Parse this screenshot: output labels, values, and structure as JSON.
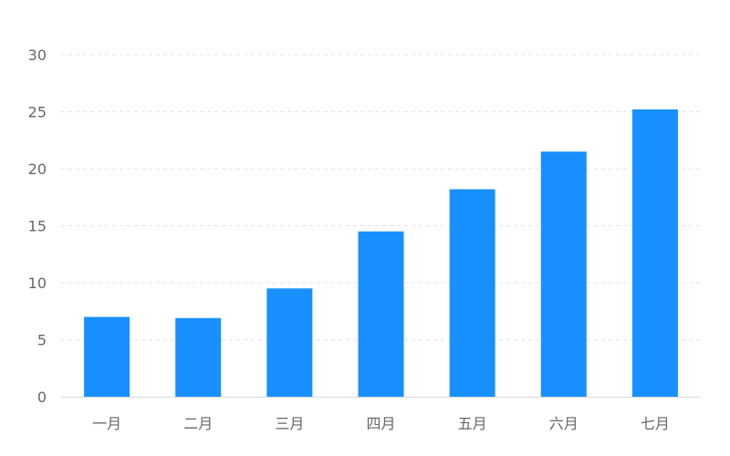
{
  "chart_data": {
    "type": "bar",
    "title": "",
    "xlabel": "",
    "ylabel": "",
    "categories": [
      "一月",
      "二月",
      "三月",
      "四月",
      "五月",
      "六月",
      "七月"
    ],
    "values": [
      7.0,
      6.9,
      9.5,
      14.5,
      18.2,
      21.5,
      25.2
    ],
    "ylim": [
      0,
      30
    ],
    "yticks": [
      0,
      5,
      10,
      15,
      20,
      25,
      30
    ],
    "ytick_labels": [
      "0",
      "5",
      "10",
      "15",
      "20",
      "25",
      "30"
    ],
    "grid": true,
    "grid_style": "dashed",
    "legend": "none",
    "bar_color": "#1890ff"
  }
}
